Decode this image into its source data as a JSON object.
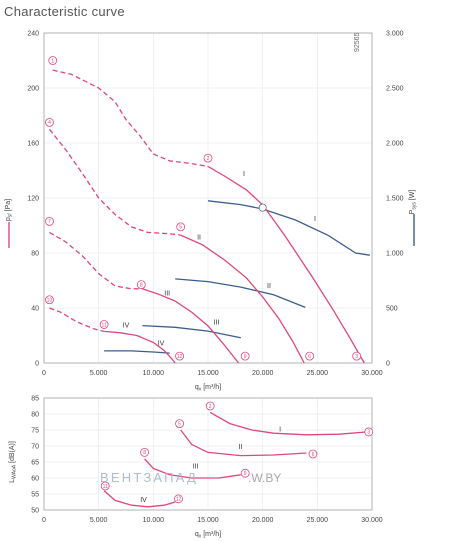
{
  "title": "Characteristic curve",
  "watermark_id": "92565",
  "brand_watermark": {
    "brand": "ВЕНТЗАПАД",
    "url": ".W.BY"
  },
  "chart_data": [
    {
      "type": "line",
      "title": "Characteristic curve",
      "xlabel": "q_v [m³/h]",
      "ylabel": "p_sf [Pa]",
      "y2label": "P_sys [W]",
      "xlim": [
        0,
        30000
      ],
      "ylim": [
        0,
        240
      ],
      "y2lim": [
        0,
        3000
      ],
      "grid": true,
      "x_ticks": [
        0,
        5000,
        10000,
        15000,
        20000,
        25000,
        30000
      ],
      "x_tick_labels": [
        "0",
        "5.000",
        "10.000",
        "15.000",
        "20.000",
        "25.000",
        "30.000"
      ],
      "y_ticks": [
        0,
        40,
        80,
        120,
        160,
        200,
        240
      ],
      "y_tick_labels": [
        "0",
        "40",
        "80",
        "120",
        "160",
        "200",
        "240"
      ],
      "y2_ticks": [
        0,
        500,
        1000,
        1500,
        2000,
        2500,
        3000
      ],
      "y2_tick_labels": [
        "0",
        "500",
        "1.000",
        "1.500",
        "2.000",
        "2.500",
        "3.000"
      ],
      "pressure_series": [
        {
          "name": "I",
          "label_at": [
            18200,
            136
          ],
          "dashed": [
            [
              800,
              213
            ],
            [
              2500,
              210
            ],
            [
              5000,
              200
            ],
            [
              6500,
              190
            ],
            [
              7500,
              177
            ],
            [
              8800,
              165
            ],
            [
              10000,
              152
            ],
            [
              11500,
              147
            ],
            [
              13500,
              145
            ],
            [
              15000,
              143
            ]
          ],
          "solid": [
            [
              15000,
              143
            ],
            [
              16500,
              136
            ],
            [
              18500,
              126
            ],
            [
              20000,
              115
            ],
            [
              22000,
              93
            ],
            [
              24500,
              63
            ],
            [
              26500,
              38
            ],
            [
              28000,
              18
            ],
            [
              29300,
              0
            ]
          ],
          "markers": [
            {
              "id": "1",
              "x": 800,
              "y": 220
            },
            {
              "id": "2",
              "x": 15000,
              "y": 149
            },
            {
              "id": "3",
              "x": 28600,
              "y": 5
            }
          ]
        },
        {
          "name": "II",
          "label_at": [
            14000,
            90
          ],
          "dashed": [
            [
              500,
              170
            ],
            [
              2000,
              155
            ],
            [
              3500,
              138
            ],
            [
              5000,
              120
            ],
            [
              6500,
              108
            ],
            [
              8000,
              99
            ],
            [
              9500,
              95
            ],
            [
              11500,
              94
            ],
            [
              12500,
              93
            ]
          ],
          "solid": [
            [
              12500,
              93
            ],
            [
              14500,
              86
            ],
            [
              16500,
              75
            ],
            [
              18500,
              62
            ],
            [
              20000,
              48
            ],
            [
              21500,
              32
            ],
            [
              22800,
              15
            ],
            [
              23800,
              0
            ]
          ],
          "markers": [
            {
              "id": "4",
              "x": 500,
              "y": 175
            },
            {
              "id": "5",
              "x": 12500,
              "y": 99
            },
            {
              "id": "6",
              "x": 24300,
              "y": 5
            }
          ]
        },
        {
          "name": "III",
          "label_at": [
            11000,
            49
          ],
          "dashed": [
            [
              500,
              95
            ],
            [
              2000,
              88
            ],
            [
              3500,
              78
            ],
            [
              5000,
              65
            ],
            [
              6500,
              56
            ],
            [
              8000,
              54
            ],
            [
              9000,
              54
            ]
          ],
          "solid": [
            [
              9000,
              54
            ],
            [
              10500,
              50
            ],
            [
              12000,
              45
            ],
            [
              13500,
              37
            ],
            [
              15000,
              27
            ],
            [
              16300,
              15
            ],
            [
              17300,
              5
            ],
            [
              17800,
              0
            ]
          ],
          "markers": [
            {
              "id": "7",
              "x": 500,
              "y": 103
            },
            {
              "id": "8",
              "x": 8900,
              "y": 57
            },
            {
              "id": "9",
              "x": 18400,
              "y": 5
            }
          ]
        },
        {
          "name": "IV",
          "label_at": [
            7200,
            26
          ],
          "dashed": [
            [
              500,
              40
            ],
            [
              1500,
              37
            ],
            [
              3000,
              30
            ],
            [
              4500,
              25
            ],
            [
              5500,
              23
            ]
          ],
          "solid": [
            [
              5500,
              23
            ],
            [
              7000,
              22
            ],
            [
              8500,
              20
            ],
            [
              10000,
              15
            ],
            [
              11000,
              9
            ],
            [
              11700,
              3
            ],
            [
              12000,
              0
            ]
          ],
          "markers": [
            {
              "id": "10",
              "x": 500,
              "y": 46
            },
            {
              "id": "11",
              "x": 5500,
              "y": 28
            },
            {
              "id": "12",
              "x": 12400,
              "y": 5
            }
          ]
        }
      ],
      "power_series": [
        {
          "name": "I",
          "label_at": [
            24700,
            1290
          ],
          "points": [
            [
              15000,
              1475
            ],
            [
              18000,
              1440
            ],
            [
              20000,
              1400
            ],
            [
              23000,
              1300
            ],
            [
              26000,
              1160
            ],
            [
              28500,
              1000
            ],
            [
              29800,
              980
            ]
          ]
        },
        {
          "name": "II",
          "label_at": [
            20400,
            680
          ],
          "points": [
            [
              12000,
              765
            ],
            [
              15000,
              740
            ],
            [
              18000,
              690
            ],
            [
              21000,
              620
            ],
            [
              23900,
              505
            ]
          ]
        },
        {
          "name": "III",
          "label_at": [
            15500,
            350
          ],
          "points": [
            [
              9000,
              340
            ],
            [
              12000,
              325
            ],
            [
              15000,
              290
            ],
            [
              18000,
              230
            ]
          ]
        },
        {
          "name": "IV",
          "label_at": [
            10400,
            160
          ],
          "points": [
            [
              5500,
              110
            ],
            [
              8000,
              110
            ],
            [
              10000,
              100
            ],
            [
              11500,
              90
            ]
          ]
        }
      ],
      "marker_color": "#e0467c",
      "power_color": "#3a5f8f"
    },
    {
      "type": "line",
      "xlabel": "q_v [m³/h]",
      "ylabel": "L_WAoA [dB(A)]",
      "xlim": [
        0,
        30000
      ],
      "ylim": [
        50,
        85
      ],
      "grid": true,
      "x_ticks": [
        0,
        5000,
        10000,
        15000,
        20000,
        25000,
        30000
      ],
      "x_tick_labels": [
        "0",
        "5.000",
        "10.000",
        "15.000",
        "20.000",
        "25.000",
        "30.000"
      ],
      "y_ticks": [
        50,
        55,
        60,
        65,
        70,
        75,
        80,
        85
      ],
      "y_tick_labels": [
        "50",
        "55",
        "60",
        "65",
        "70",
        "75",
        "80",
        "85"
      ],
      "series": [
        {
          "name": "I",
          "label_at": [
            21500,
            74.5
          ],
          "points": [
            [
              15200,
              80.5
            ],
            [
              17000,
              77
            ],
            [
              19000,
              75
            ],
            [
              21000,
              74
            ],
            [
              24000,
              73.5
            ],
            [
              27000,
              73.7
            ],
            [
              29600,
              74.4
            ]
          ],
          "markers": [
            {
              "id": "2",
              "x": 15200,
              "y": 82.5
            },
            {
              "id": "3",
              "x": 29700,
              "y": 74.4
            }
          ]
        },
        {
          "name": "II",
          "label_at": [
            17800,
            69
          ],
          "points": [
            [
              12500,
              75
            ],
            [
              13500,
              70.5
            ],
            [
              15000,
              68
            ],
            [
              18000,
              67
            ],
            [
              21000,
              67.2
            ],
            [
              24000,
              67.8
            ]
          ],
          "markers": [
            {
              "id": "5",
              "x": 12400,
              "y": 77
            },
            {
              "id": "6",
              "x": 24600,
              "y": 67.5
            }
          ]
        },
        {
          "name": "III",
          "label_at": [
            13600,
            63
          ],
          "points": [
            [
              9200,
              66
            ],
            [
              10000,
              63
            ],
            [
              11500,
              61
            ],
            [
              13500,
              60
            ],
            [
              16000,
              60
            ],
            [
              18000,
              61
            ]
          ],
          "markers": [
            {
              "id": "8",
              "x": 9200,
              "y": 68
            },
            {
              "id": "9",
              "x": 18400,
              "y": 61.5
            }
          ]
        },
        {
          "name": "IV",
          "label_at": [
            8800,
            52.5
          ],
          "points": [
            [
              5500,
              56
            ],
            [
              6500,
              53
            ],
            [
              8000,
              51.5
            ],
            [
              9500,
              51
            ],
            [
              11000,
              51.5
            ],
            [
              12000,
              52.5
            ]
          ],
          "markers": [
            {
              "id": "11",
              "x": 5600,
              "y": 57.5
            },
            {
              "id": "12",
              "x": 12300,
              "y": 53.5
            }
          ]
        }
      ],
      "line_color": "#e0467c"
    }
  ]
}
